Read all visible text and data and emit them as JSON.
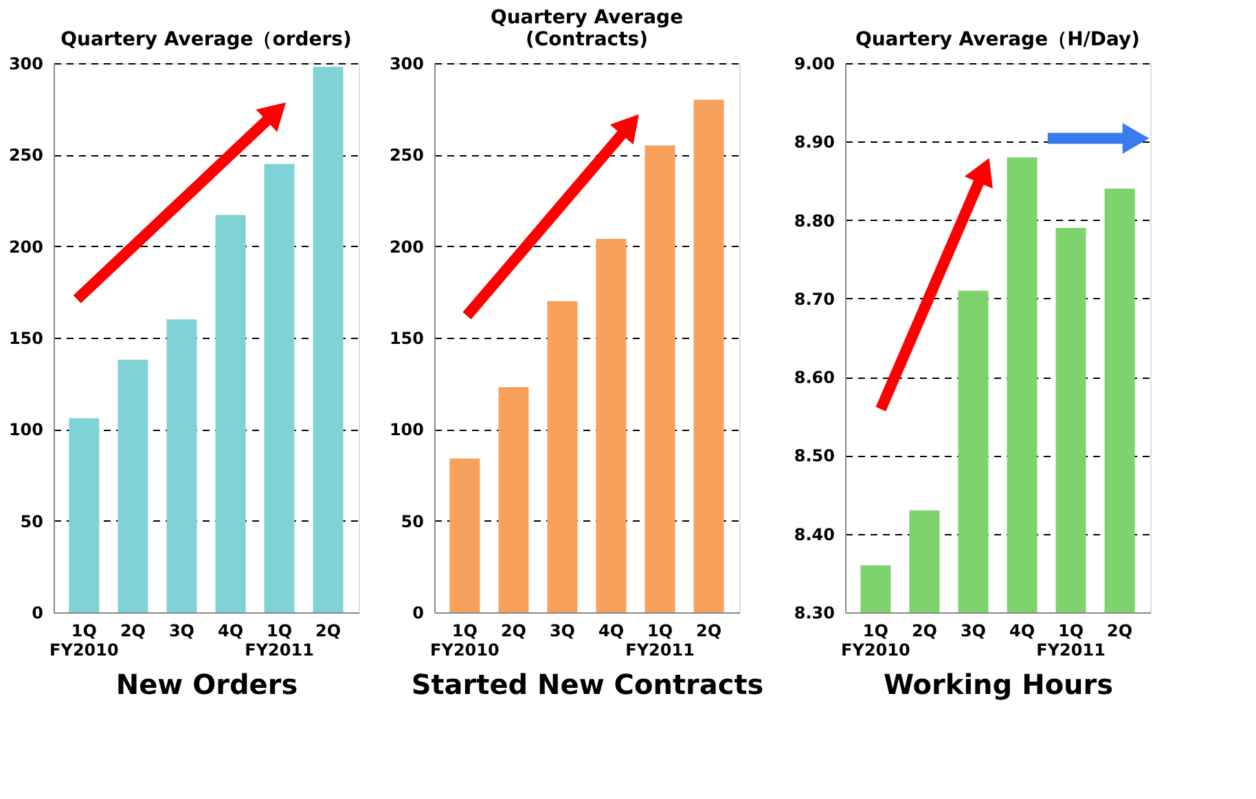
{
  "chart_data": [
    {
      "type": "bar",
      "title": "Quartery Average（orders)",
      "xlabel": "New Orders",
      "categories": [
        "1Q\nFY2010",
        "2Q",
        "3Q",
        "4Q",
        "1Q\nFY2011",
        "2Q"
      ],
      "values": [
        106,
        138,
        160,
        217,
        245,
        298
      ],
      "color": "#7fd3d6",
      "ylim": [
        0,
        300
      ],
      "yticks": [
        0,
        50,
        100,
        150,
        200,
        250,
        300
      ],
      "grid": "y"
    },
    {
      "type": "bar",
      "title": "Quartery Average\n(Contracts)",
      "xlabel": "Started New Contracts",
      "categories": [
        "1Q\nFY2010",
        "2Q",
        "3Q",
        "4Q",
        "1Q\nFY2011",
        "2Q"
      ],
      "values": [
        84,
        123,
        170,
        204,
        255,
        280
      ],
      "color": "#f7a15c",
      "ylim": [
        0,
        300
      ],
      "yticks": [
        0,
        50,
        100,
        150,
        200,
        250,
        300
      ],
      "grid": "y"
    },
    {
      "type": "bar",
      "title": "Quartery Average（H/Day)",
      "xlabel": "Working Hours",
      "categories": [
        "1Q\nFY2010",
        "2Q",
        "3Q",
        "4Q",
        "1Q\nFY2011",
        "2Q"
      ],
      "values": [
        8.36,
        8.43,
        8.71,
        8.88,
        8.79,
        8.84
      ],
      "color": "#7fd36d",
      "ylim": [
        8.3,
        9.0
      ],
      "yticks": [
        {
          "value": 8.3,
          "label": "8.30"
        },
        {
          "value": 8.4,
          "label": "8.40"
        },
        {
          "value": 8.5,
          "label": "8.50"
        },
        {
          "value": 8.6,
          "label": "8.60"
        },
        {
          "value": 8.7,
          "label": "8.70"
        },
        {
          "value": 8.8,
          "label": "8.80"
        },
        {
          "value": 8.9,
          "label": "8.90"
        },
        {
          "value": 9.0,
          "label": "9.00"
        }
      ],
      "grid": "y"
    }
  ]
}
